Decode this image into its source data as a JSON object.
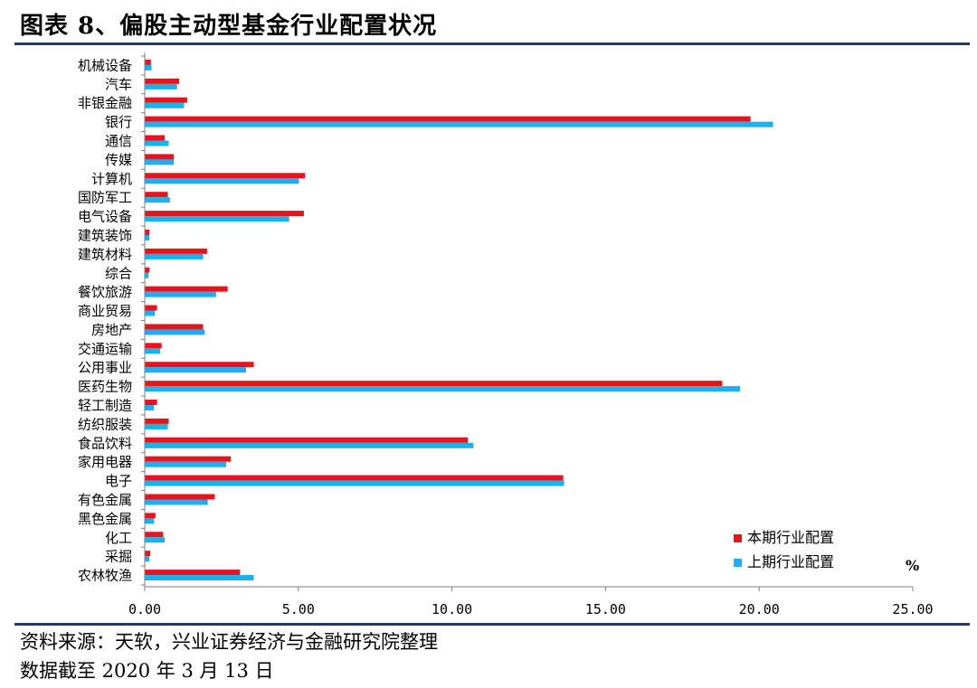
{
  "header": {
    "title": "图表 8、偏股主动型基金行业配置状况"
  },
  "footer": {
    "source": "资料来源：天软，兴业证券经济与金融研究院整理",
    "date": "数据截至 2020 年 3 月 13 日"
  },
  "chart_data": {
    "type": "bar",
    "orientation": "horizontal",
    "categories": [
      "机械设备",
      "汽车",
      "非银金融",
      "银行",
      "通信",
      "传媒",
      "计算机",
      "国防军工",
      "电气设备",
      "建筑装饰",
      "建筑材料",
      "综合",
      "餐饮旅游",
      "商业贸易",
      "房地产",
      "交通运输",
      "公用事业",
      "医药生物",
      "轻工制造",
      "纺织服装",
      "食品饮料",
      "家用电器",
      "电子",
      "有色金属",
      "黑色金属",
      "化工",
      "采掘",
      "农林牧渔"
    ],
    "series": [
      {
        "name": "本期行业配置",
        "color": "#e8141c",
        "values": [
          0.2,
          1.12,
          1.38,
          19.72,
          0.65,
          0.95,
          5.22,
          0.75,
          5.18,
          0.15,
          2.03,
          0.15,
          2.7,
          0.4,
          1.9,
          0.55,
          3.55,
          18.8,
          0.4,
          0.78,
          10.52,
          2.8,
          13.62,
          2.28,
          0.35,
          0.6,
          0.18,
          3.1
        ]
      },
      {
        "name": "上期行业配置",
        "color": "#1ab1ee",
        "values": [
          0.22,
          1.05,
          1.28,
          20.45,
          0.78,
          0.95,
          5.02,
          0.82,
          4.7,
          0.15,
          1.9,
          0.12,
          2.32,
          0.33,
          1.95,
          0.5,
          3.3,
          19.38,
          0.3,
          0.75,
          10.7,
          2.65,
          13.65,
          2.05,
          0.3,
          0.65,
          0.15,
          3.55
        ]
      }
    ],
    "xlim": [
      0,
      25
    ],
    "xticks": [
      "0.00",
      "5.00",
      "10.00",
      "15.00",
      "20.00",
      "25.00"
    ],
    "unit": "%",
    "legend_position": "bottom-right",
    "grid": false
  }
}
